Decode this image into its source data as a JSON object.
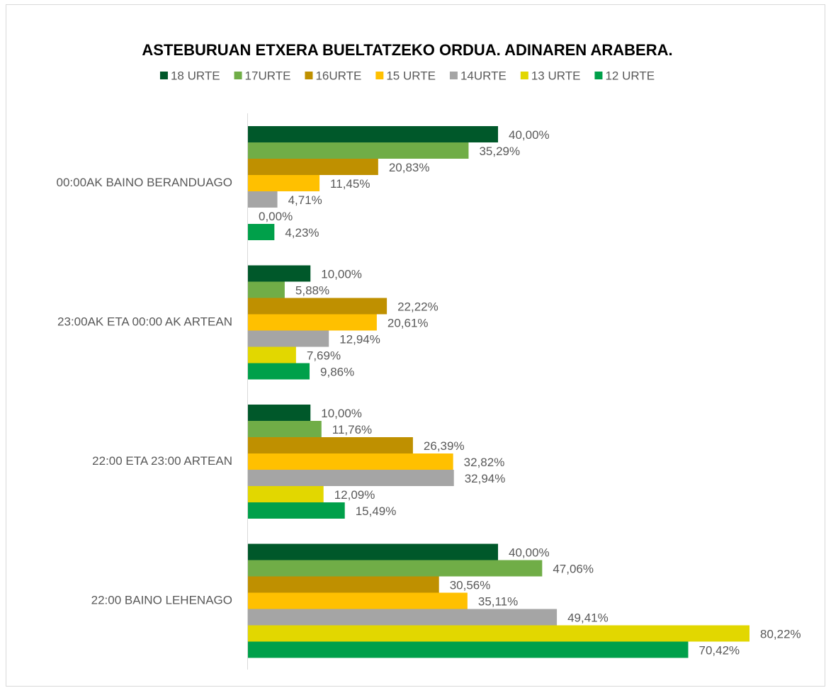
{
  "chart_data": {
    "type": "hbar",
    "title": "ASTEBURUAN ETXERA BUELTATZEKO ORDUA. ADINAREN ARABERA.",
    "categories": [
      "00:00AK BAINO BERANDUAGO",
      "23:00AK ETA 00:00 AK ARTEAN",
      "22:00 ETA 23:00 ARTEAN",
      "22:00 BAINO LEHENAGO"
    ],
    "series": [
      {
        "name": "18 URTE",
        "color": "#00582a",
        "values": [
          40.0,
          10.0,
          10.0,
          40.0
        ],
        "value_labels": [
          "40,00%",
          "10,00%",
          "10,00%",
          "40,00%"
        ]
      },
      {
        "name": "17URTE",
        "color": "#70ad47",
        "values": [
          35.29,
          5.88,
          11.76,
          47.06
        ],
        "value_labels": [
          "35,29%",
          "5,88%",
          "11,76%",
          "47,06%"
        ]
      },
      {
        "name": "16URTE",
        "color": "#bf9000",
        "values": [
          20.83,
          22.22,
          26.39,
          30.56
        ],
        "value_labels": [
          "20,83%",
          "22,22%",
          "26,39%",
          "30,56%"
        ]
      },
      {
        "name": "15 URTE",
        "color": "#ffc000",
        "values": [
          11.45,
          20.61,
          32.82,
          35.11
        ],
        "value_labels": [
          "11,45%",
          "20,61%",
          "32,82%",
          "35,11%"
        ]
      },
      {
        "name": "14URTE",
        "color": "#a5a5a5",
        "values": [
          4.71,
          12.94,
          32.94,
          49.41
        ],
        "value_labels": [
          "4,71%",
          "12,94%",
          "32,94%",
          "49,41%"
        ]
      },
      {
        "name": "13 URTE",
        "color": "#e2d700",
        "values": [
          0.0,
          7.69,
          12.09,
          80.22
        ],
        "value_labels": [
          "0,00%",
          "7,69%",
          "12,09%",
          "80,22%"
        ]
      },
      {
        "name": "12 URTE",
        "color": "#00a04a",
        "values": [
          4.23,
          9.86,
          15.49,
          70.42
        ],
        "value_labels": [
          "4,23%",
          "9,86%",
          "15,49%",
          "70,42%"
        ]
      }
    ]
  }
}
